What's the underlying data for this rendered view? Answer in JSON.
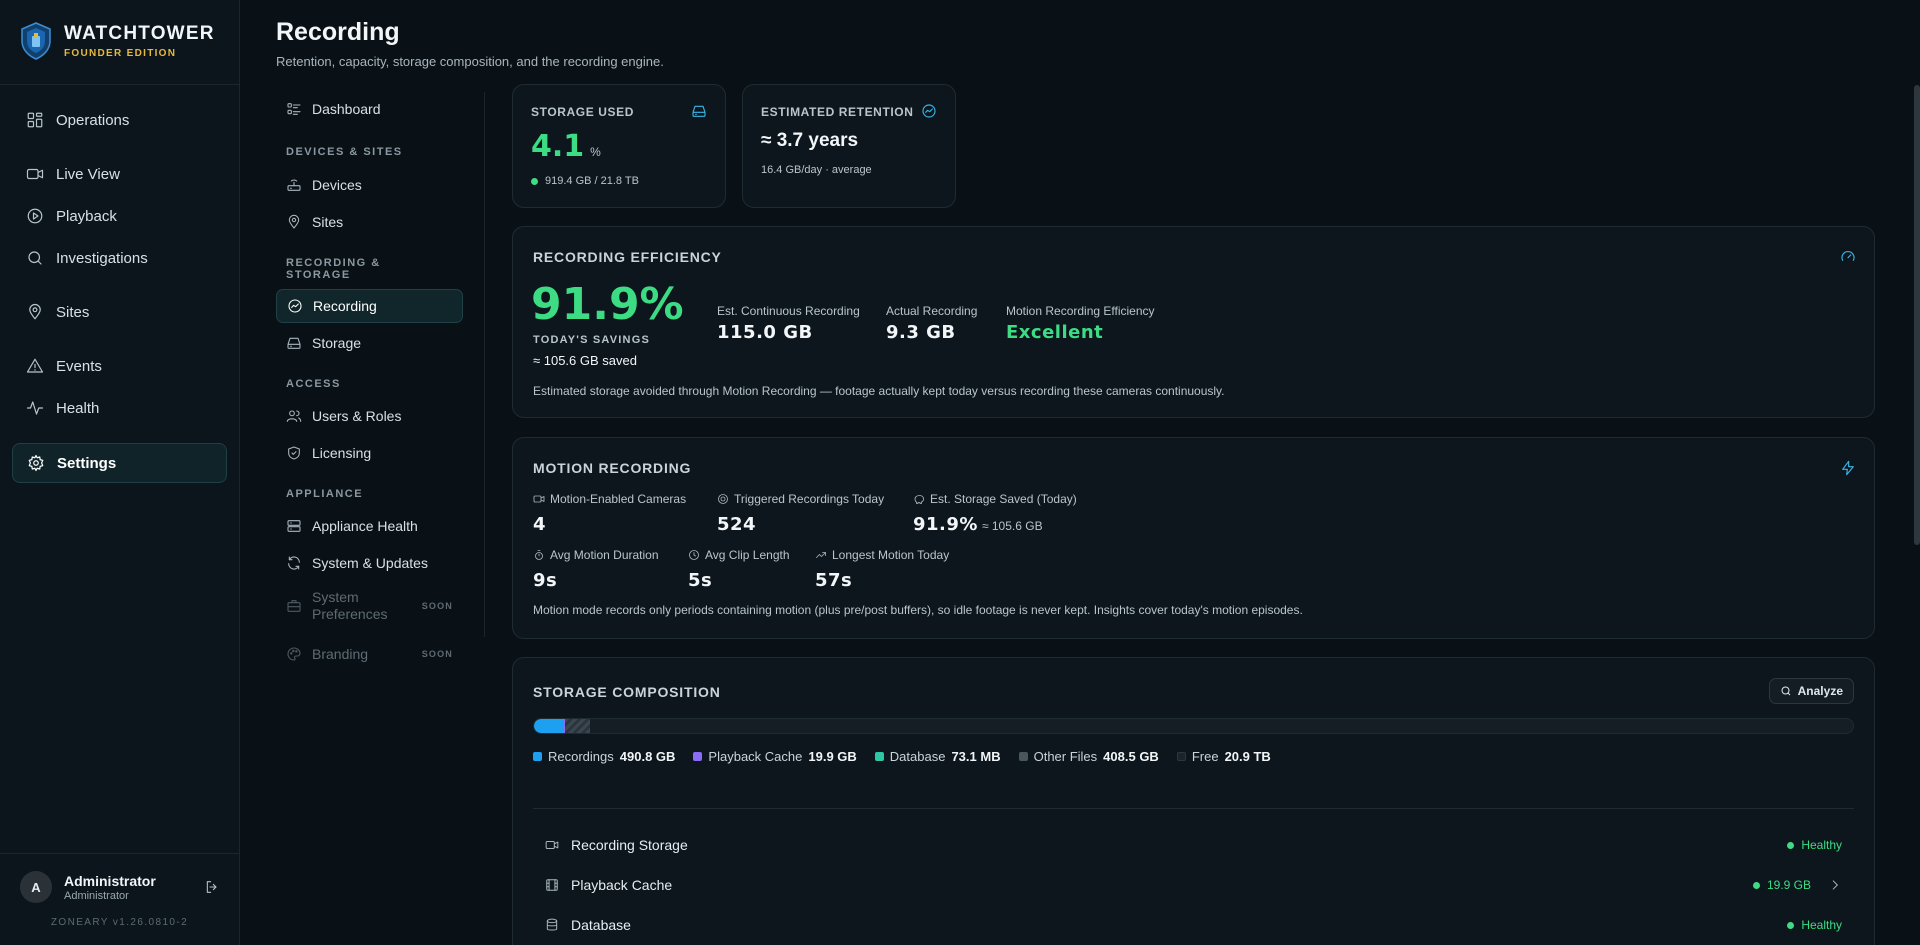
{
  "brand": {
    "name": "WATCHTOWER",
    "edition": "FOUNDER EDITION"
  },
  "sidebar": {
    "items": [
      {
        "label": "Operations",
        "icon": "grid-icon"
      },
      {
        "label": "Live View",
        "icon": "camera-icon"
      },
      {
        "label": "Playback",
        "icon": "play-circle-icon"
      },
      {
        "label": "Investigations",
        "icon": "search-icon"
      },
      {
        "label": "Sites",
        "icon": "map-pin-icon"
      },
      {
        "label": "Events",
        "icon": "alert-triangle-icon"
      },
      {
        "label": "Health",
        "icon": "activity-icon"
      },
      {
        "label": "Settings",
        "icon": "gear-icon",
        "active": true
      }
    ]
  },
  "user": {
    "initial": "A",
    "name": "Administrator",
    "role": "Administrator"
  },
  "version": "ZONEARY v1.26.0810-2",
  "header": {
    "title": "Recording",
    "subtitle": "Retention, capacity, storage composition, and the recording engine."
  },
  "subnav": {
    "dashboard": "Dashboard",
    "sections": {
      "devices_sites": "DEVICES & SITES",
      "recording_storage": "RECORDING &\nSTORAGE",
      "access": "ACCESS",
      "appliance": "APPLIANCE"
    },
    "devices": "Devices",
    "sites": "Sites",
    "recording": "Recording",
    "storage": "Storage",
    "users_roles": "Users & Roles",
    "licensing": "Licensing",
    "appliance_health": "Appliance Health",
    "system_updates": "System & Updates",
    "system_preferences": "System\nPreferences",
    "branding": "Branding",
    "soon": "SOON"
  },
  "storage_used": {
    "label": "STORAGE USED",
    "value": "4.1",
    "unit": "%",
    "detail": "919.4 GB / 21.8 TB"
  },
  "retention": {
    "label": "ESTIMATED RETENTION",
    "value": "≈ 3.7 years",
    "detail": "16.4 GB/day · average"
  },
  "efficiency": {
    "title": "RECORDING EFFICIENCY",
    "percent": "91.9%",
    "savings_label": "TODAY'S SAVINGS",
    "saved": "≈ 105.6 GB saved",
    "continuous_label": "Est. Continuous Recording",
    "continuous_value": "115.0 GB",
    "actual_label": "Actual Recording",
    "actual_value": "9.3 GB",
    "motion_label": "Motion Recording Efficiency",
    "motion_value": "Excellent",
    "note": "Estimated storage avoided through Motion Recording — footage actually kept today versus recording these cameras continuously."
  },
  "motion": {
    "title": "MOTION RECORDING",
    "cameras_label": "Motion-Enabled Cameras",
    "cameras_value": "4",
    "triggered_label": "Triggered Recordings Today",
    "triggered_value": "524",
    "saved_label": "Est. Storage Saved (Today)",
    "saved_value": "91.9%",
    "saved_detail": "≈ 105.6 GB",
    "duration_label": "Avg Motion Duration",
    "duration_value": "9s",
    "clip_label": "Avg Clip Length",
    "clip_value": "5s",
    "longest_label": "Longest Motion Today",
    "longest_value": "57s",
    "note": "Motion mode records only periods containing motion (plus pre/post buffers), so idle footage is never kept. Insights cover today's motion episodes."
  },
  "composition": {
    "title": "STORAGE COMPOSITION",
    "analyze": "Analyze",
    "bar": [
      {
        "name": "Recordings",
        "fraction": 0.0225,
        "color": "#1ea0f0"
      },
      {
        "name": "Playback Cache",
        "fraction": 0.0009,
        "color": "#8b6cf6"
      },
      {
        "name": "Database",
        "fraction": 1e-05,
        "color": "#2fc6a4"
      },
      {
        "name": "Other Files",
        "fraction": 0.0187,
        "color": "#3a4750"
      }
    ],
    "legend": [
      {
        "name": "Recordings",
        "value": "490.8 GB",
        "color": "#1ea0f0"
      },
      {
        "name": "Playback Cache",
        "value": "19.9 GB",
        "color": "#8b6cf6"
      },
      {
        "name": "Database",
        "value": "73.1 MB",
        "color": "#2fc6a4"
      },
      {
        "name": "Other Files",
        "value": "408.5 GB",
        "color": "#4a565e"
      },
      {
        "name": "Free",
        "value": "20.9 TB",
        "color": "#1a242a"
      }
    ],
    "rows": [
      {
        "name": "Recording Storage",
        "status": "Healthy"
      },
      {
        "name": "Playback Cache",
        "status": "19.9 GB"
      },
      {
        "name": "Database",
        "status": "Healthy"
      }
    ]
  }
}
